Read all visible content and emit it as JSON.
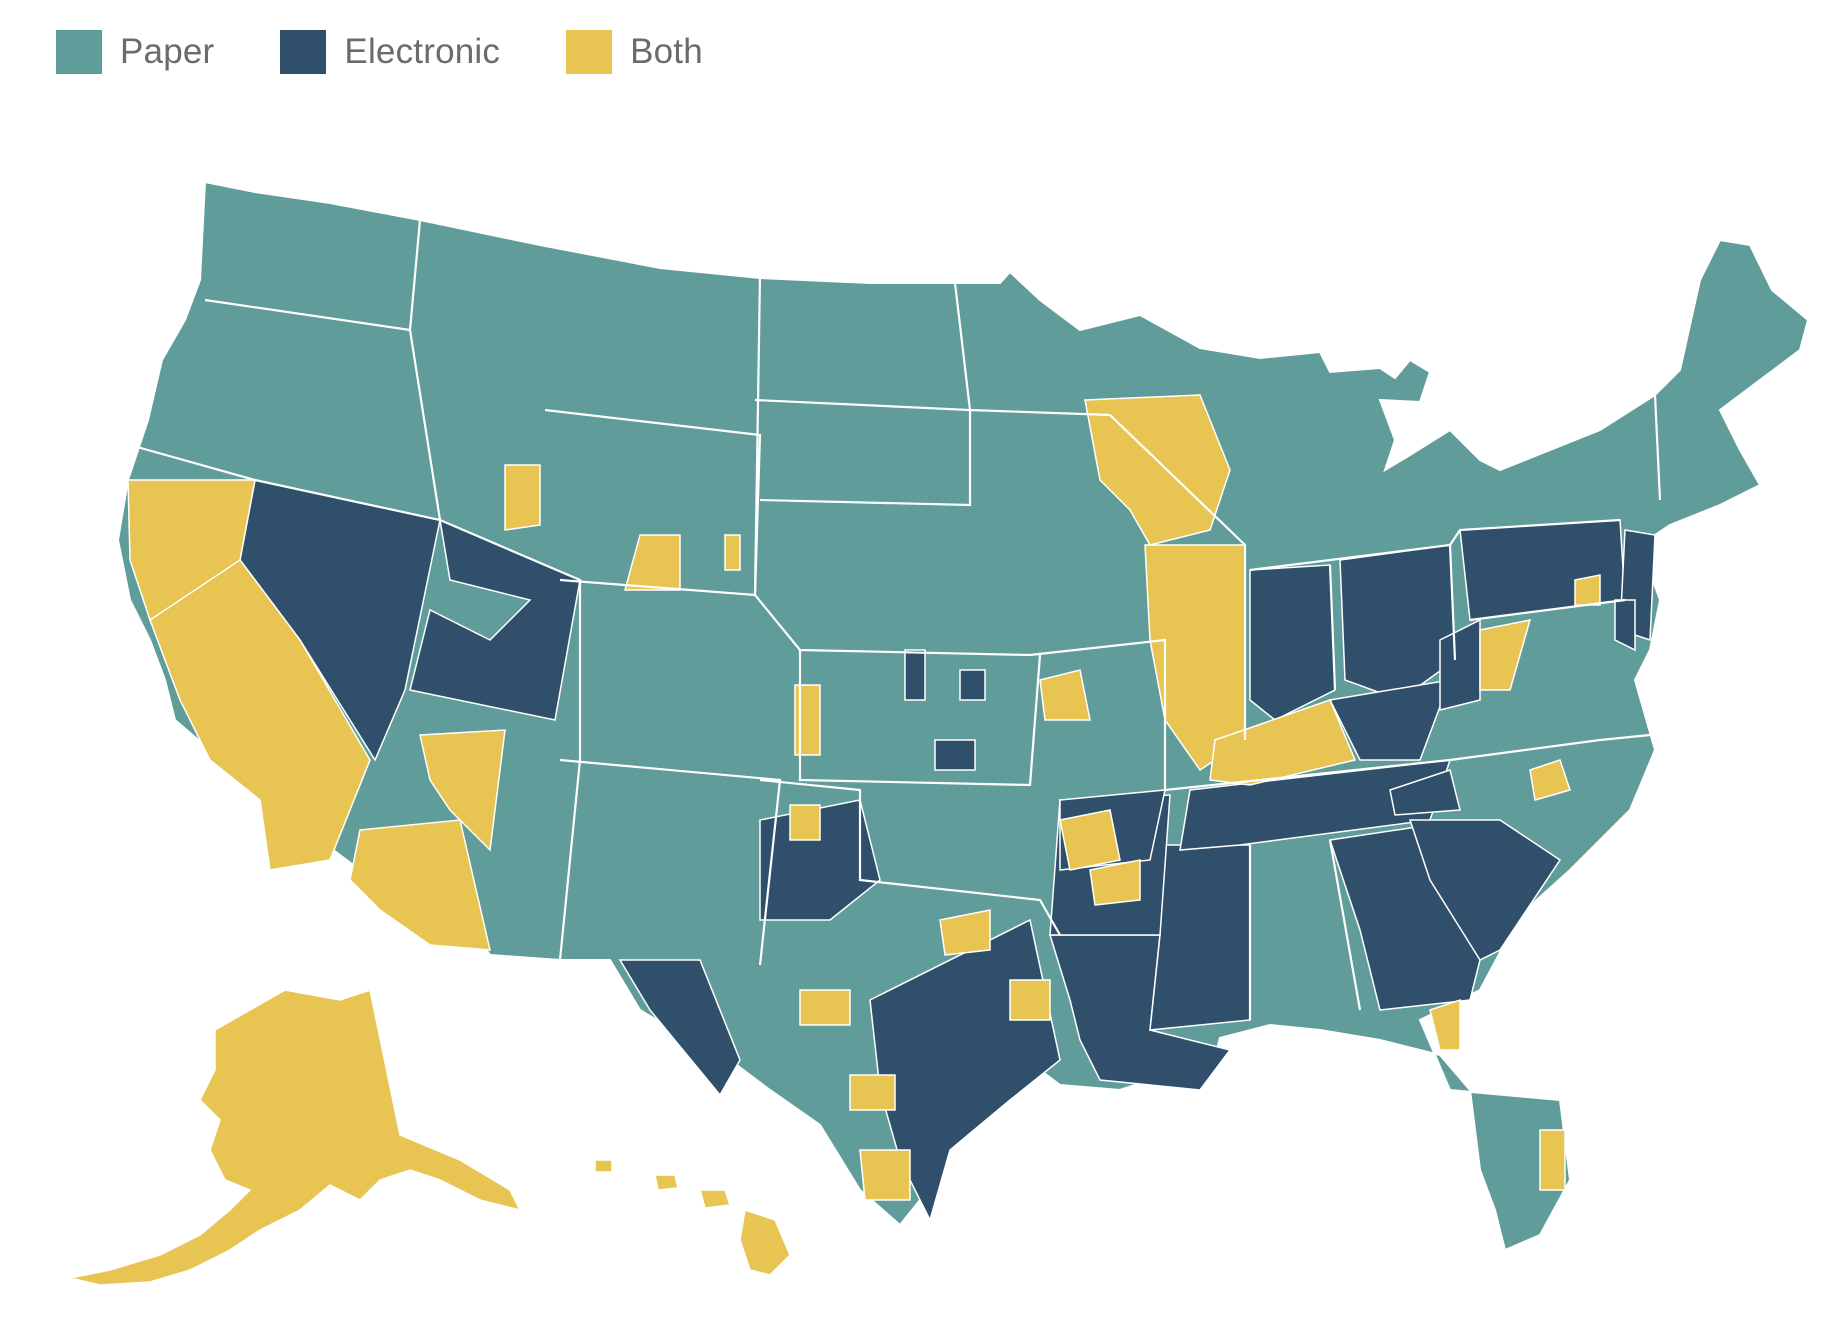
{
  "legend": {
    "items": [
      {
        "label": "Paper",
        "color": "#5f9c9a"
      },
      {
        "label": "Electronic",
        "color": "#2f4f6b"
      },
      {
        "label": "Both",
        "color": "#e8c452"
      }
    ]
  },
  "colors": {
    "paper": "#5f9c9a",
    "electronic": "#2f4f6b",
    "both": "#e8c452",
    "border": "#ffffff"
  }
}
